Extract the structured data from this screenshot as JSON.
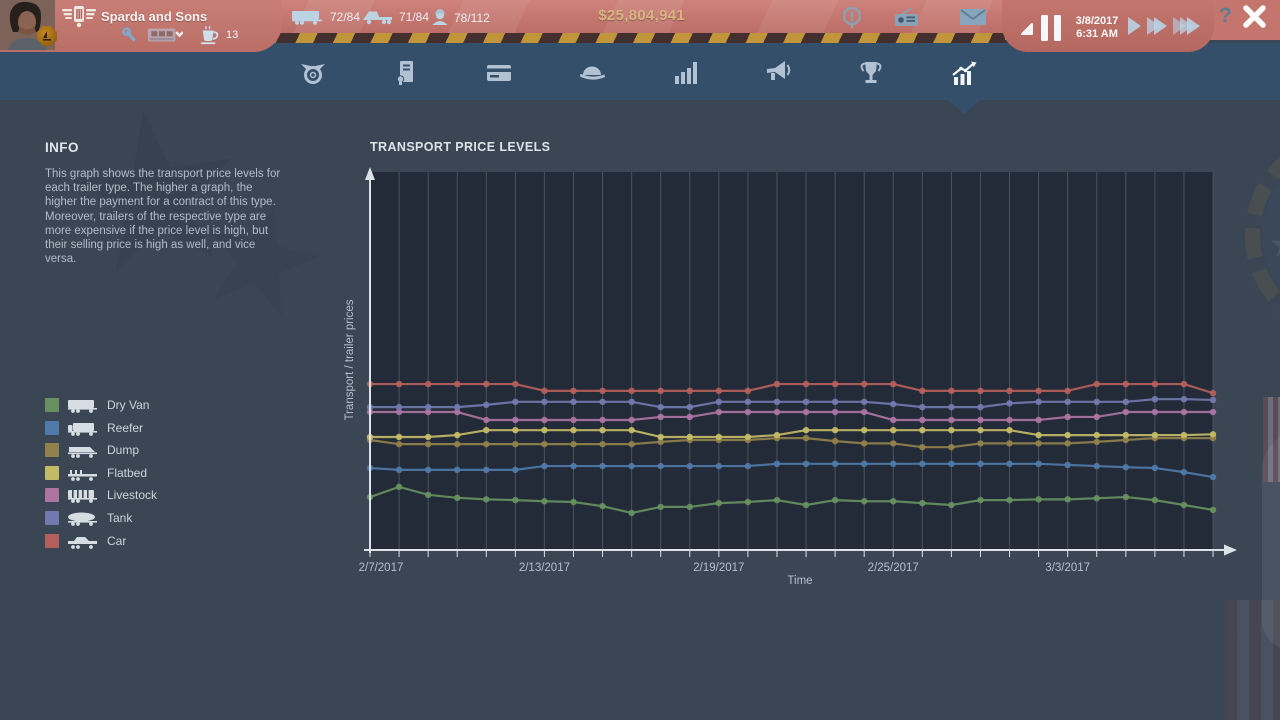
{
  "colors": {
    "bg": "#3b4655",
    "navbar": "#344f69",
    "plot_background": "#242b38",
    "gridline": "#4a5260",
    "axis": "#dde2e7",
    "tick_label": "#b6bfc9",
    "money": "#d9b582",
    "hazard-gold": "#c1963a",
    "hazard-dark": "#43302e",
    "topbar": "#c3756e"
  },
  "topbar": {
    "company_name": "Sparda and Sons",
    "trailers_count": "72/84",
    "trucks_count": "71/84",
    "drivers_count": "78/112",
    "money": "$25,804,941",
    "coffee_count": "13",
    "date": "3/8/2017",
    "time": "6:31 AM",
    "help_label": "?"
  },
  "nav": {
    "items": [
      "medal-icon",
      "certificate-icon",
      "credit-card-icon",
      "cap-icon",
      "bar-chart-icon",
      "megaphone-icon",
      "trophy-icon",
      "price-trends-icon"
    ],
    "selected_index": 7
  },
  "info_panel": {
    "title": "INFO",
    "paragraph1": "This graph shows the transport price levels for each trailer type. The higher a graph, the higher the payment for a contract of this type.",
    "paragraph2": "Moreover, trailers of the respective type are more expensive if the price level is high, but their selling price is high as well, and vice versa."
  },
  "chart_data": {
    "type": "line",
    "title": "TRANSPORT PRICE LEVELS",
    "xlabel": "Time",
    "ylabel": "Transport / trailer prices",
    "x_start_date": "2/7/2017",
    "x_end_date": "3/8/2017",
    "x_interval": "1 day",
    "num_points": 30,
    "x_tick_labels": [
      "2/7/2017",
      "2/13/2017",
      "2/19/2017",
      "2/25/2017",
      "3/3/2017"
    ],
    "x_tick_indices": [
      0,
      6,
      12,
      18,
      24
    ],
    "ylim": [
      0,
      100
    ],
    "grid": "vertical-daily",
    "legend_position": "left",
    "series": [
      {
        "name": "Dry Van",
        "color": "#66905f",
        "icon": "dry-van-trailer-icon",
        "values": [
          14.0,
          16.7,
          14.6,
          13.8,
          13.4,
          13.2,
          12.9,
          12.7,
          11.6,
          9.8,
          11.4,
          11.4,
          12.4,
          12.7,
          13.2,
          11.9,
          13.2,
          12.9,
          12.9,
          12.4,
          11.9,
          13.2,
          13.2,
          13.4,
          13.4,
          13.7,
          14.0,
          13.2,
          11.9,
          10.6
        ]
      },
      {
        "name": "Reefer",
        "color": "#4f79a8",
        "icon": "reefer-trailer-icon",
        "values": [
          21.7,
          21.2,
          21.2,
          21.2,
          21.2,
          21.2,
          22.2,
          22.2,
          22.2,
          22.2,
          22.2,
          22.2,
          22.2,
          22.2,
          22.8,
          22.8,
          22.8,
          22.8,
          22.8,
          22.8,
          22.8,
          22.8,
          22.8,
          22.8,
          22.5,
          22.2,
          21.9,
          21.7,
          20.6,
          19.3
        ]
      },
      {
        "name": "Dump",
        "color": "#91814b",
        "icon": "dump-trailer-icon",
        "values": [
          29.1,
          28.0,
          28.0,
          28.0,
          28.0,
          28.0,
          28.0,
          28.0,
          28.0,
          28.0,
          28.6,
          29.1,
          29.1,
          29.1,
          29.6,
          29.6,
          28.8,
          28.2,
          28.2,
          27.2,
          27.2,
          28.2,
          28.2,
          28.2,
          28.2,
          28.6,
          29.1,
          29.6,
          29.6,
          29.6
        ]
      },
      {
        "name": "Flatbed",
        "color": "#c3ba66",
        "icon": "flatbed-trailer-icon",
        "values": [
          29.9,
          29.9,
          29.9,
          30.4,
          31.7,
          31.7,
          31.7,
          31.7,
          31.7,
          31.7,
          29.9,
          29.9,
          29.9,
          29.9,
          30.4,
          31.7,
          31.7,
          31.7,
          31.7,
          31.7,
          31.7,
          31.7,
          31.7,
          30.4,
          30.4,
          30.4,
          30.4,
          30.4,
          30.4,
          30.6
        ]
      },
      {
        "name": "Livestock",
        "color": "#ad74a2",
        "icon": "livestock-trailer-icon",
        "values": [
          36.5,
          36.5,
          36.5,
          36.5,
          34.4,
          34.4,
          34.4,
          34.4,
          34.4,
          34.4,
          35.2,
          35.2,
          36.5,
          36.5,
          36.5,
          36.5,
          36.5,
          36.5,
          34.4,
          34.4,
          34.4,
          34.4,
          34.4,
          34.4,
          35.2,
          35.2,
          36.5,
          36.5,
          36.5,
          36.5
        ]
      },
      {
        "name": "Tank",
        "color": "#7279ae",
        "icon": "tank-trailer-icon",
        "values": [
          37.8,
          37.8,
          37.8,
          37.8,
          38.4,
          39.2,
          39.2,
          39.2,
          39.2,
          39.2,
          37.8,
          37.8,
          39.2,
          39.2,
          39.2,
          39.2,
          39.2,
          39.2,
          38.6,
          37.8,
          37.8,
          37.8,
          38.8,
          39.2,
          39.2,
          39.2,
          39.2,
          39.9,
          39.9,
          39.7
        ]
      },
      {
        "name": "Car",
        "color": "#b55f5c",
        "icon": "car-trailer-icon",
        "values": [
          43.9,
          43.9,
          43.9,
          43.9,
          43.9,
          43.9,
          42.1,
          42.1,
          42.1,
          42.1,
          42.1,
          42.1,
          42.1,
          42.1,
          43.9,
          43.9,
          43.9,
          43.9,
          43.9,
          42.1,
          42.1,
          42.1,
          42.1,
          42.1,
          42.1,
          43.9,
          43.9,
          43.9,
          43.9,
          41.5
        ]
      }
    ]
  }
}
